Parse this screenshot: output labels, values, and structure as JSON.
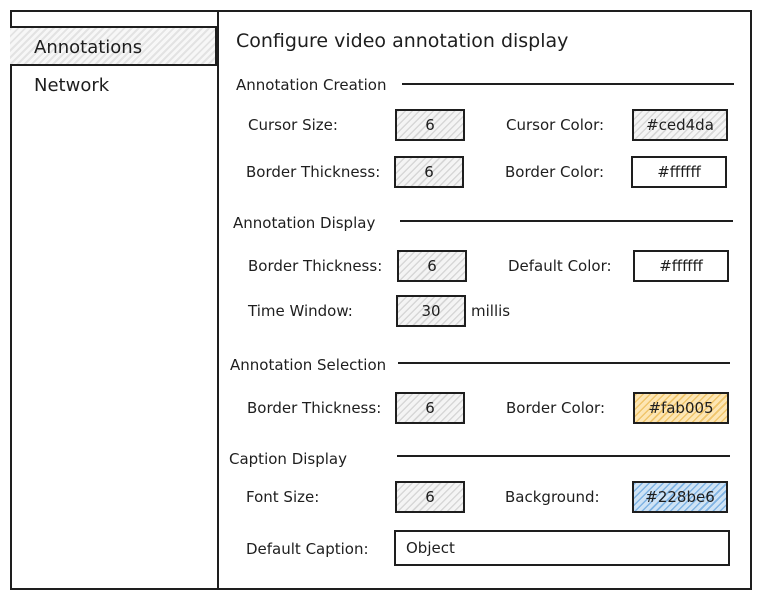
{
  "sidebar": {
    "items": [
      {
        "label": "Annotations",
        "active": true
      },
      {
        "label": "Network",
        "active": false
      }
    ]
  },
  "page": {
    "title": "Configure video annotation display"
  },
  "annotation_creation": {
    "heading": "Annotation Creation",
    "cursor_size_label": "Cursor Size:",
    "cursor_size_value": "6",
    "cursor_color_label": "Cursor Color:",
    "cursor_color_value": "#ced4da",
    "border_thickness_label": "Border Thickness:",
    "border_thickness_value": "6",
    "border_color_label": "Border Color:",
    "border_color_value": "#ffffff"
  },
  "annotation_display": {
    "heading": "Annotation Display",
    "border_thickness_label": "Border Thickness:",
    "border_thickness_value": "6",
    "default_color_label": "Default Color:",
    "default_color_value": "#ffffff",
    "time_window_label": "Time Window:",
    "time_window_value": "30",
    "time_window_unit": "millis"
  },
  "annotation_selection": {
    "heading": "Annotation Selection",
    "border_thickness_label": "Border Thickness:",
    "border_thickness_value": "6",
    "border_color_label": "Border Color:",
    "border_color_value": "#fab005"
  },
  "caption_display": {
    "heading": "Caption Display",
    "font_size_label": "Font Size:",
    "font_size_value": "6",
    "background_label": "Background:",
    "background_value": "#228be6",
    "default_caption_label": "Default Caption:",
    "default_caption_value": "Object"
  },
  "colors": {
    "stroke": "#1e1e1e",
    "selection_fill": "#fab005",
    "background_fill": "#228be6"
  }
}
